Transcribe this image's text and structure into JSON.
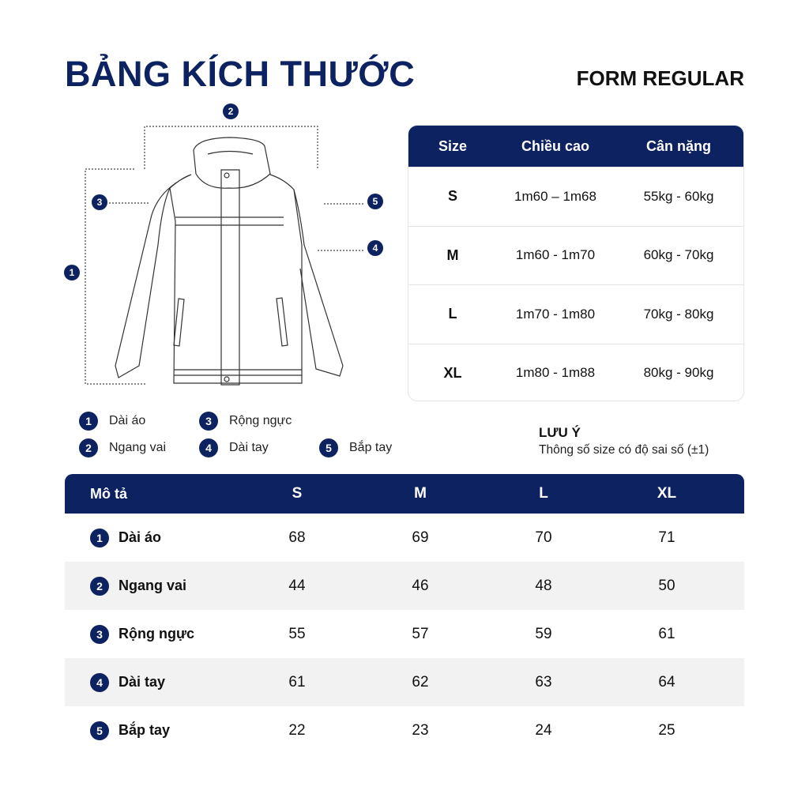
{
  "title": "BẢNG KÍCH THƯỚC",
  "form": "FORM REGULAR",
  "colors": {
    "navy": "#0d2260",
    "row_alt": "#f2f2f2"
  },
  "diagram": {
    "markers": [
      "1",
      "2",
      "3",
      "4",
      "5"
    ]
  },
  "size_table": {
    "headers": [
      "Size",
      "Chiều cao",
      "Cân nặng"
    ],
    "rows": [
      [
        "S",
        "1m60 – 1m68",
        "55kg - 60kg"
      ],
      [
        "M",
        "1m60 - 1m70",
        "60kg - 70kg"
      ],
      [
        "L",
        "1m70 - 1m80",
        "70kg - 80kg"
      ],
      [
        "XL",
        "1m80 - 1m88",
        "80kg - 90kg"
      ]
    ]
  },
  "legend": [
    {
      "n": "1",
      "label": "Dài áo"
    },
    {
      "n": "2",
      "label": "Ngang vai"
    },
    {
      "n": "3",
      "label": "Rộng ngực"
    },
    {
      "n": "4",
      "label": "Dài tay"
    },
    {
      "n": "5",
      "label": "Bắp tay"
    }
  ],
  "note": {
    "title": "LƯU Ý",
    "text": "Thông số size có độ sai số (±1)"
  },
  "measure_table": {
    "headers": [
      "Mô tả",
      "S",
      "M",
      "L",
      "XL"
    ],
    "rows": [
      {
        "n": "1",
        "label": "Dài áo",
        "values": [
          "68",
          "69",
          "70",
          "71"
        ]
      },
      {
        "n": "2",
        "label": "Ngang vai",
        "values": [
          "44",
          "46",
          "48",
          "50"
        ]
      },
      {
        "n": "3",
        "label": "Rộng ngực",
        "values": [
          "55",
          "57",
          "59",
          "61"
        ]
      },
      {
        "n": "4",
        "label": "Dài tay",
        "values": [
          "61",
          "62",
          "63",
          "64"
        ]
      },
      {
        "n": "5",
        "label": "Bắp tay",
        "values": [
          "22",
          "23",
          "24",
          "25"
        ]
      }
    ]
  }
}
